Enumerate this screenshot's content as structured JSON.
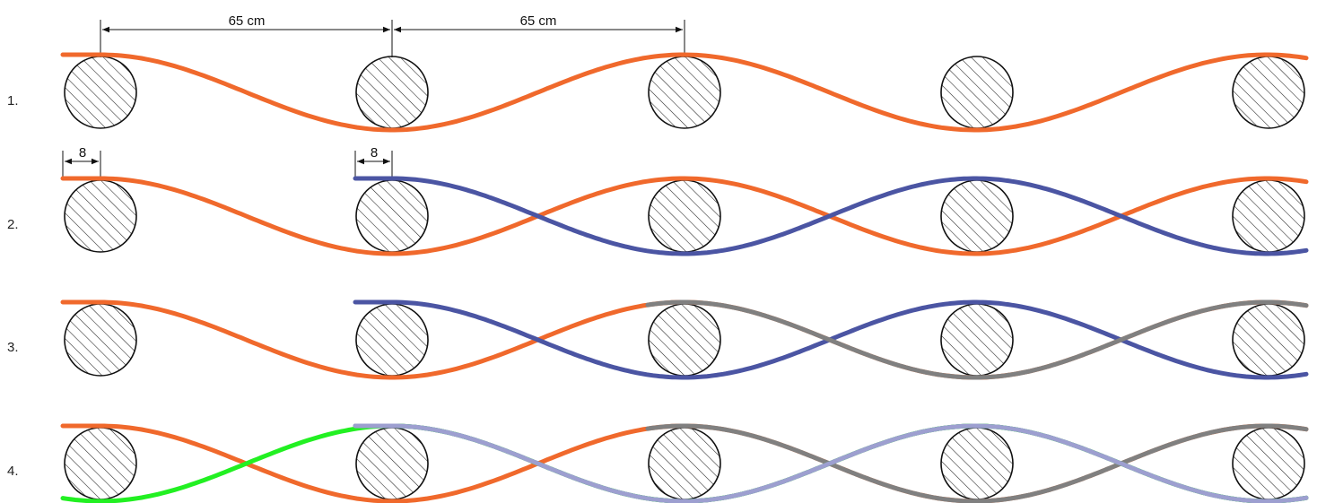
{
  "dimensions": {
    "spacing_left": "65 cm",
    "spacing_right": "65 cm",
    "offset_row2_a": "8",
    "offset_row2_b": "8"
  },
  "rows": [
    {
      "label": "1.",
      "strands": [
        {
          "color": "#f0692c",
          "start": 70,
          "phase": 0
        }
      ]
    },
    {
      "label": "2.",
      "strands": [
        {
          "color": "#f0692c",
          "start": 70,
          "phase": 0
        },
        {
          "color": "#4b55a3",
          "start": 396,
          "phase": 1
        }
      ]
    },
    {
      "label": "3.",
      "strands": [
        {
          "color": "#f0692c",
          "start": 70,
          "phase": 0
        },
        {
          "color": "#4b55a3",
          "start": 396,
          "phase": 1
        },
        {
          "color": "#808080",
          "start": 722,
          "phase": 0
        }
      ]
    },
    {
      "label": "4.",
      "strands": [
        {
          "color": "#f0692c",
          "start": 70,
          "phase": 0
        },
        {
          "color": "#4b55a3",
          "start": 396,
          "phase": 1
        },
        {
          "color": "#808080",
          "start": 722,
          "phase": 0
        },
        {
          "color": "#22f022",
          "start": 70,
          "phase": 1
        },
        {
          "color": "#9d9fd0",
          "start": 396,
          "phase": 1
        }
      ]
    }
  ],
  "colors": {
    "circle_stroke": "#111111",
    "hatch": "#222222"
  }
}
